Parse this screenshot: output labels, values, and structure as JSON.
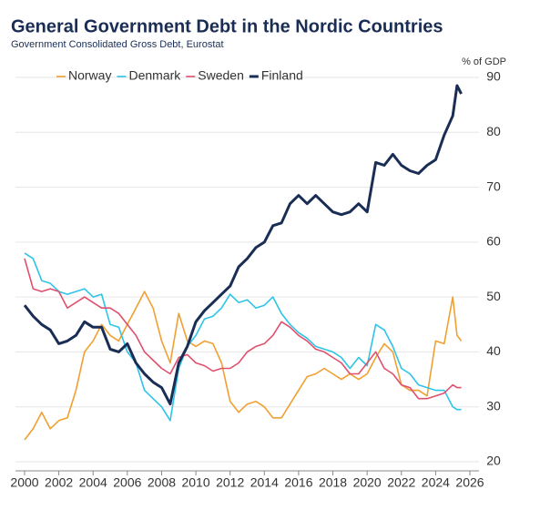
{
  "chart_data": {
    "type": "line",
    "title": "General Government Debt in the Nordic Countries",
    "subtitle": "Government Consolidated Gross Debt, Eurostat",
    "y_label": "% of GDP",
    "x": [
      2000,
      2000.5,
      2001,
      2001.5,
      2002,
      2002.5,
      2003,
      2003.5,
      2004,
      2004.5,
      2005,
      2005.5,
      2006,
      2006.5,
      2007,
      2007.5,
      2008,
      2008.5,
      2009,
      2009.5,
      2010,
      2010.5,
      2011,
      2011.5,
      2012,
      2012.5,
      2013,
      2013.5,
      2014,
      2014.5,
      2015,
      2015.5,
      2016,
      2016.5,
      2017,
      2017.5,
      2018,
      2018.5,
      2019,
      2019.5,
      2020,
      2020.5,
      2021,
      2021.5,
      2022,
      2022.5,
      2023,
      2023.5,
      2024,
      2024.5,
      2025,
      2025.25,
      2025.5
    ],
    "series": [
      {
        "name": "Norway",
        "color": "#f0a030",
        "width": 1.6,
        "values": [
          24,
          26,
          29,
          26,
          27.5,
          28,
          33,
          40,
          42,
          45,
          43,
          42,
          45,
          48,
          51,
          48,
          42,
          38,
          47,
          42,
          41,
          42,
          41.5,
          38,
          31,
          29,
          30.5,
          31,
          30,
          28,
          28,
          30.5,
          33,
          35.5,
          36,
          37,
          36,
          35,
          36,
          35,
          36,
          39,
          41.5,
          40,
          34,
          33,
          33,
          32,
          42,
          41.5,
          50,
          43,
          42
        ]
      },
      {
        "name": "Denmark",
        "color": "#2ec4e8",
        "width": 1.6,
        "values": [
          58,
          57,
          53,
          52.5,
          51,
          50.5,
          51,
          51.5,
          50,
          50.5,
          45,
          44.5,
          40,
          38,
          33,
          31.5,
          30,
          27.5,
          37,
          41,
          43,
          46,
          46.5,
          48,
          50.5,
          49,
          49.5,
          48,
          48.5,
          50,
          47,
          45,
          43.5,
          42.5,
          41,
          40.5,
          40,
          39,
          37,
          39,
          37.5,
          45,
          44,
          41,
          37,
          36,
          34,
          33.5,
          33,
          33,
          30,
          29.5,
          29.5
        ]
      },
      {
        "name": "Sweden",
        "color": "#e0506e",
        "width": 1.6,
        "values": [
          57,
          51.5,
          51,
          51.5,
          51,
          48,
          49,
          50,
          49,
          48,
          48,
          47,
          45,
          43,
          40,
          38.5,
          37,
          36,
          39,
          39.5,
          38,
          37.5,
          36.5,
          37,
          37,
          38,
          40,
          41,
          41.5,
          43,
          45.5,
          44.5,
          43,
          42,
          40.5,
          40,
          39,
          38,
          36,
          36,
          38,
          40,
          37,
          36,
          34,
          33.5,
          31.5,
          31.5,
          32,
          32.5,
          34,
          33.5,
          33.5
        ]
      },
      {
        "name": "Finland",
        "color": "#1a2e55",
        "width": 3,
        "values": [
          48.5,
          46.5,
          45,
          44,
          41.5,
          42,
          43,
          45.5,
          44.5,
          44.5,
          40.5,
          40,
          41.5,
          38,
          36,
          34.5,
          33.5,
          30.5,
          38,
          41,
          45.5,
          47.5,
          49,
          50.5,
          52,
          55.5,
          57,
          59,
          60,
          63,
          63.5,
          67,
          68.5,
          67,
          68.5,
          67,
          65.5,
          65,
          65.5,
          67,
          65.5,
          74.5,
          74,
          76,
          74,
          73,
          72.5,
          74,
          75,
          79.5,
          83,
          88.5,
          87
        ]
      }
    ],
    "xlim": [
      2000,
      2026
    ],
    "xticks": [
      2000,
      2002,
      2004,
      2006,
      2008,
      2010,
      2012,
      2014,
      2016,
      2018,
      2020,
      2022,
      2024,
      2026
    ],
    "ylim": [
      20,
      90
    ],
    "yticks": [
      20,
      30,
      40,
      50,
      60,
      70,
      80,
      90
    ],
    "grid": true,
    "legend": "top-left"
  }
}
